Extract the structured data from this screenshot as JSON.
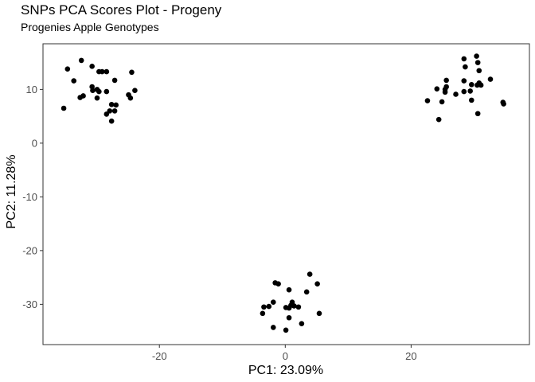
{
  "chart_data": {
    "type": "scatter",
    "title": "SNPs PCA Scores Plot - Progeny",
    "subtitle": "Progenies Apple Genotypes",
    "xlabel": "PC1: 23.09%",
    "ylabel": "PC2: 11.28%",
    "xlim": [
      -38.5,
      38.8
    ],
    "ylim": [
      -37.5,
      18.5
    ],
    "xticks": [
      -20,
      0,
      20
    ],
    "yticks": [
      -30,
      -20,
      -10,
      0,
      10
    ],
    "xtick_labels": [
      "-20",
      "0",
      "20"
    ],
    "ytick_labels": [
      "-30",
      "-20",
      "-10",
      "0",
      "10"
    ],
    "grid": false,
    "legend": "none",
    "point_color": "#000000",
    "points": [
      {
        "x": -34.6,
        "y": 13.8
      },
      {
        "x": -32.4,
        "y": 15.4
      },
      {
        "x": -30.7,
        "y": 14.3
      },
      {
        "x": -33.6,
        "y": 11.6
      },
      {
        "x": -35.2,
        "y": 6.5
      },
      {
        "x": -32.6,
        "y": 8.5
      },
      {
        "x": -32.1,
        "y": 8.8
      },
      {
        "x": -30.7,
        "y": 10.5
      },
      {
        "x": -30.6,
        "y": 9.8
      },
      {
        "x": -29.9,
        "y": 10.0
      },
      {
        "x": -29.6,
        "y": 13.3
      },
      {
        "x": -29.1,
        "y": 13.3
      },
      {
        "x": -28.4,
        "y": 13.3
      },
      {
        "x": -29.6,
        "y": 9.6
      },
      {
        "x": -28.4,
        "y": 9.6
      },
      {
        "x": -29.9,
        "y": 8.4
      },
      {
        "x": -27.1,
        "y": 11.7
      },
      {
        "x": -27.6,
        "y": 7.2
      },
      {
        "x": -26.9,
        "y": 7.1
      },
      {
        "x": -28.4,
        "y": 5.4
      },
      {
        "x": -27.9,
        "y": 6.0
      },
      {
        "x": -27.1,
        "y": 6.0
      },
      {
        "x": -27.6,
        "y": 4.1
      },
      {
        "x": -24.4,
        "y": 13.2
      },
      {
        "x": -24.9,
        "y": 9.0
      },
      {
        "x": -24.6,
        "y": 8.4
      },
      {
        "x": -23.9,
        "y": 9.8
      },
      {
        "x": 30.4,
        "y": 16.2
      },
      {
        "x": 28.4,
        "y": 15.7
      },
      {
        "x": 30.6,
        "y": 15.0
      },
      {
        "x": 28.6,
        "y": 14.2
      },
      {
        "x": 30.8,
        "y": 13.5
      },
      {
        "x": 25.6,
        "y": 11.7
      },
      {
        "x": 28.4,
        "y": 11.6
      },
      {
        "x": 32.6,
        "y": 11.9
      },
      {
        "x": 29.6,
        "y": 10.9
      },
      {
        "x": 30.5,
        "y": 10.8
      },
      {
        "x": 30.8,
        "y": 11.2
      },
      {
        "x": 31.1,
        "y": 10.8
      },
      {
        "x": 24.1,
        "y": 10.1
      },
      {
        "x": 25.6,
        "y": 10.5
      },
      {
        "x": 25.4,
        "y": 10.0
      },
      {
        "x": 25.4,
        "y": 9.5
      },
      {
        "x": 28.4,
        "y": 9.6
      },
      {
        "x": 29.4,
        "y": 9.7
      },
      {
        "x": 27.1,
        "y": 9.1
      },
      {
        "x": 22.6,
        "y": 7.9
      },
      {
        "x": 24.9,
        "y": 7.7
      },
      {
        "x": 29.6,
        "y": 8.0
      },
      {
        "x": 34.6,
        "y": 7.6
      },
      {
        "x": 34.7,
        "y": 7.3
      },
      {
        "x": 24.4,
        "y": 4.4
      },
      {
        "x": 30.6,
        "y": 5.5
      },
      {
        "x": -1.6,
        "y": -26.0
      },
      {
        "x": -1.1,
        "y": -26.2
      },
      {
        "x": 3.9,
        "y": -24.4
      },
      {
        "x": 5.1,
        "y": -26.2
      },
      {
        "x": 0.6,
        "y": -27.3
      },
      {
        "x": 3.4,
        "y": -27.7
      },
      {
        "x": -1.9,
        "y": -29.6
      },
      {
        "x": 1.1,
        "y": -29.6
      },
      {
        "x": 0.9,
        "y": -30.2
      },
      {
        "x": 1.4,
        "y": -30.3
      },
      {
        "x": -3.4,
        "y": -30.5
      },
      {
        "x": -2.6,
        "y": -30.4
      },
      {
        "x": 0.1,
        "y": -30.6
      },
      {
        "x": 0.6,
        "y": -30.7
      },
      {
        "x": 2.1,
        "y": -30.5
      },
      {
        "x": -3.6,
        "y": -31.7
      },
      {
        "x": 5.4,
        "y": -31.7
      },
      {
        "x": 0.6,
        "y": -32.5
      },
      {
        "x": -1.9,
        "y": -34.3
      },
      {
        "x": 2.6,
        "y": -33.6
      },
      {
        "x": 0.1,
        "y": -34.8
      }
    ]
  }
}
